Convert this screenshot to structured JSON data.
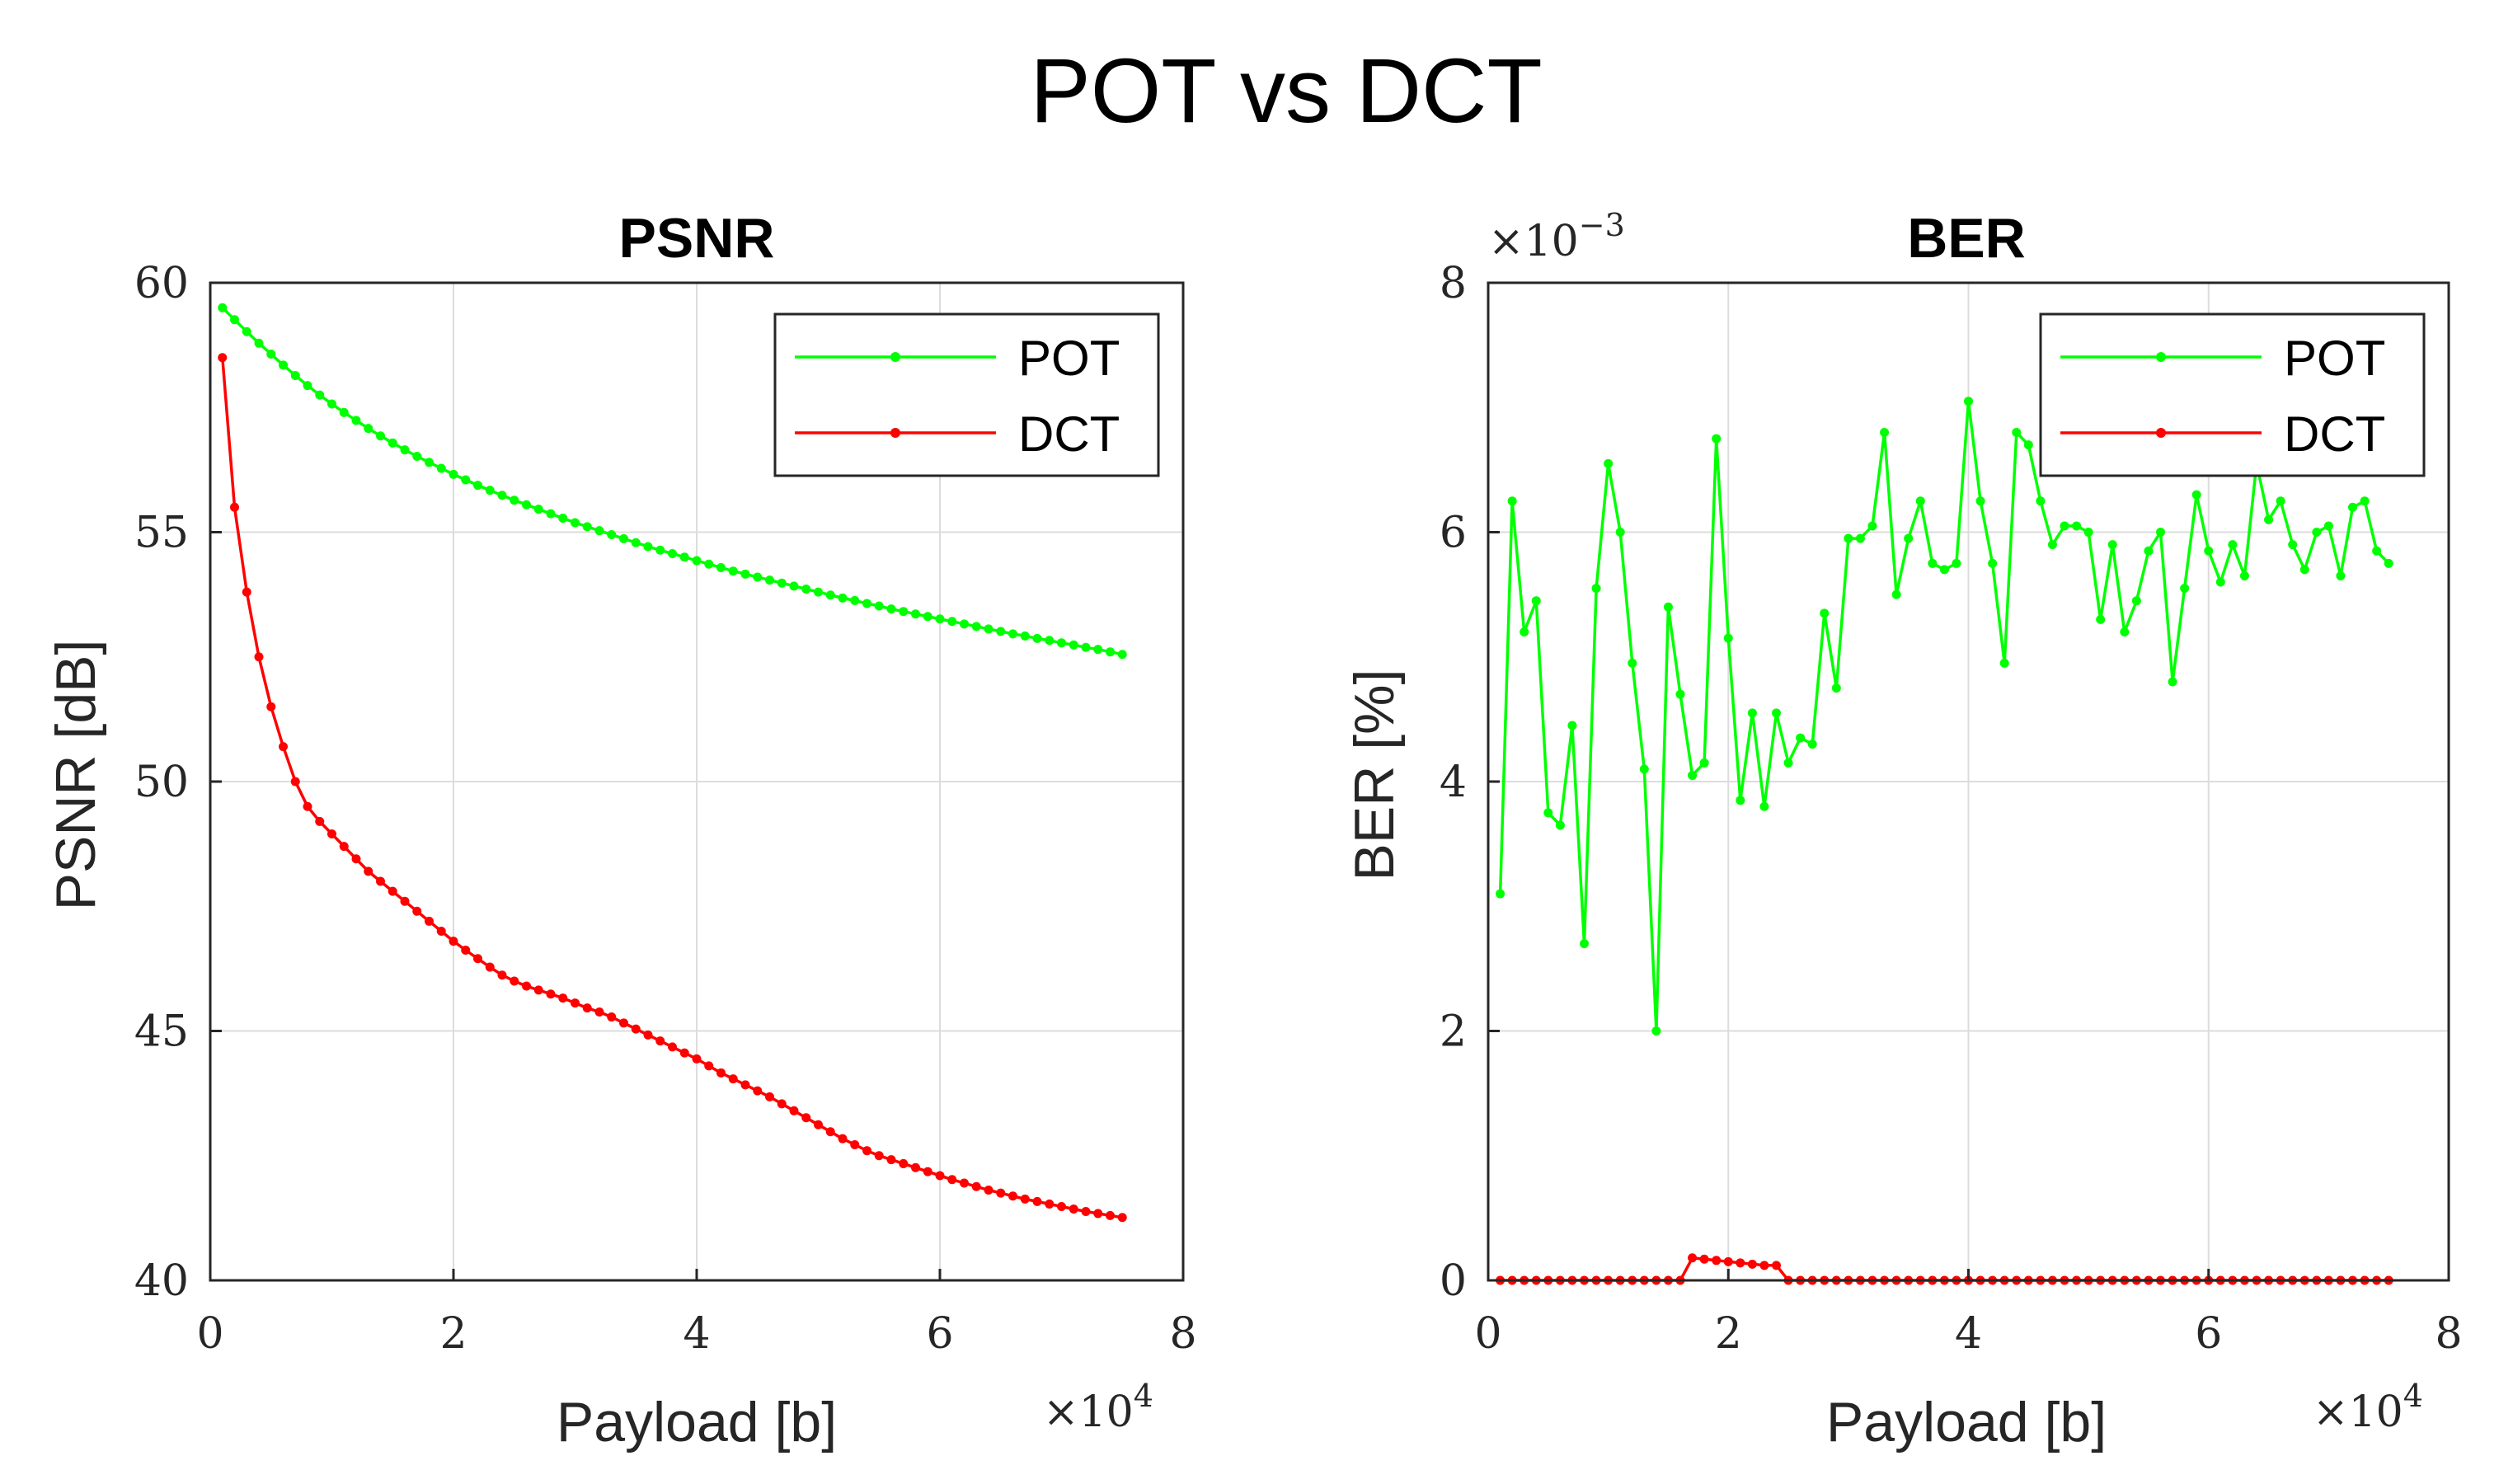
{
  "figure": {
    "title": "POT vs DCT"
  },
  "colors": {
    "pot": "#00ff00",
    "dct": "#ff0000"
  },
  "chart_data": [
    {
      "type": "line",
      "title": "PSNR",
      "xlabel": "Payload [b]",
      "ylabel": "PSNR [dB]",
      "x_multiplier_label": "×10",
      "x_multiplier_exp": "4",
      "xlim": [
        0,
        8
      ],
      "ylim": [
        40,
        60
      ],
      "xticks": [
        0,
        2,
        4,
        6,
        8
      ],
      "yticks": [
        40,
        45,
        50,
        55,
        60
      ],
      "grid": true,
      "legend_position": "top-right",
      "x": [
        0.1,
        0.2,
        0.3,
        0.4,
        0.5,
        0.6,
        0.7,
        0.8,
        0.9,
        1.0,
        1.1,
        1.2,
        1.3,
        1.4,
        1.5,
        1.6,
        1.7,
        1.8,
        1.9,
        2.0,
        2.1,
        2.2,
        2.3,
        2.4,
        2.5,
        2.6,
        2.7,
        2.8,
        2.9,
        3.0,
        3.1,
        3.2,
        3.3,
        3.4,
        3.5,
        3.6,
        3.7,
        3.8,
        3.9,
        4.0,
        4.1,
        4.2,
        4.3,
        4.4,
        4.5,
        4.6,
        4.7,
        4.8,
        4.9,
        5.0,
        5.1,
        5.2,
        5.3,
        5.4,
        5.5,
        5.6,
        5.7,
        5.8,
        5.9,
        6.0,
        6.1,
        6.2,
        6.3,
        6.4,
        6.5,
        6.6,
        6.7,
        6.8,
        6.9,
        7.0,
        7.1,
        7.2,
        7.3,
        7.4,
        7.5
      ],
      "series": [
        {
          "name": "POT",
          "values": [
            59.5,
            59.26,
            59.02,
            58.79,
            58.57,
            58.35,
            58.14,
            57.94,
            57.75,
            57.57,
            57.4,
            57.24,
            57.08,
            56.93,
            56.79,
            56.65,
            56.52,
            56.4,
            56.28,
            56.16,
            56.05,
            55.94,
            55.84,
            55.74,
            55.64,
            55.55,
            55.46,
            55.37,
            55.28,
            55.19,
            55.11,
            55.03,
            54.95,
            54.87,
            54.79,
            54.71,
            54.64,
            54.57,
            54.5,
            54.43,
            54.36,
            54.29,
            54.22,
            54.16,
            54.1,
            54.04,
            53.98,
            53.92,
            53.86,
            53.8,
            53.74,
            53.68,
            53.63,
            53.57,
            53.52,
            53.46,
            53.41,
            53.36,
            53.31,
            53.26,
            53.21,
            53.16,
            53.11,
            53.06,
            53.01,
            52.96,
            52.92,
            52.87,
            52.83,
            52.78,
            52.74,
            52.69,
            52.65,
            52.6,
            52.55
          ]
        },
        {
          "name": "DCT",
          "values": [
            58.5,
            55.5,
            53.8,
            52.5,
            51.5,
            50.7,
            50.0,
            49.5,
            49.2,
            48.95,
            48.7,
            48.45,
            48.2,
            48.0,
            47.8,
            47.6,
            47.4,
            47.2,
            47.0,
            46.8,
            46.62,
            46.45,
            46.28,
            46.12,
            46.0,
            45.9,
            45.82,
            45.74,
            45.66,
            45.56,
            45.46,
            45.38,
            45.28,
            45.16,
            45.04,
            44.92,
            44.8,
            44.68,
            44.56,
            44.44,
            44.3,
            44.16,
            44.04,
            43.92,
            43.8,
            43.68,
            43.54,
            43.4,
            43.26,
            43.12,
            42.98,
            42.84,
            42.72,
            42.6,
            42.5,
            42.42,
            42.34,
            42.26,
            42.18,
            42.1,
            42.02,
            41.95,
            41.88,
            41.81,
            41.75,
            41.69,
            41.63,
            41.58,
            41.53,
            41.48,
            41.43,
            41.38,
            41.34,
            41.3,
            41.26
          ]
        }
      ]
    },
    {
      "type": "line",
      "title": "BER",
      "xlabel": "Payload [b]",
      "ylabel": "BER [%]",
      "x_multiplier_label": "×10",
      "x_multiplier_exp": "4",
      "y_multiplier_label": "×10",
      "y_multiplier_exp": "−3",
      "xlim": [
        0,
        8
      ],
      "ylim": [
        0,
        8
      ],
      "xticks": [
        0,
        2,
        4,
        6,
        8
      ],
      "yticks": [
        0,
        2,
        4,
        6,
        8
      ],
      "grid": true,
      "legend_position": "top-right",
      "x": [
        0.1,
        0.2,
        0.3,
        0.4,
        0.5,
        0.6,
        0.7,
        0.8,
        0.9,
        1.0,
        1.1,
        1.2,
        1.3,
        1.4,
        1.5,
        1.6,
        1.7,
        1.8,
        1.9,
        2.0,
        2.1,
        2.2,
        2.3,
        2.4,
        2.5,
        2.6,
        2.7,
        2.8,
        2.9,
        3.0,
        3.1,
        3.2,
        3.3,
        3.4,
        3.5,
        3.6,
        3.7,
        3.8,
        3.9,
        4.0,
        4.1,
        4.2,
        4.3,
        4.4,
        4.5,
        4.6,
        4.7,
        4.8,
        4.9,
        5.0,
        5.1,
        5.2,
        5.3,
        5.4,
        5.5,
        5.6,
        5.7,
        5.8,
        5.9,
        6.0,
        6.1,
        6.2,
        6.3,
        6.4,
        6.5,
        6.6,
        6.7,
        6.8,
        6.9,
        7.0,
        7.1,
        7.2,
        7.3,
        7.4,
        7.5
      ],
      "series": [
        {
          "name": "POT",
          "values": [
            3.1,
            6.25,
            5.2,
            5.45,
            3.75,
            3.65,
            4.45,
            2.7,
            5.55,
            6.55,
            6.0,
            4.95,
            4.1,
            2.0,
            5.4,
            4.7,
            4.05,
            4.15,
            6.75,
            5.15,
            3.85,
            4.55,
            3.8,
            4.55,
            4.15,
            4.35,
            4.3,
            5.35,
            4.75,
            5.95,
            5.95,
            6.05,
            6.8,
            5.5,
            5.95,
            6.25,
            5.75,
            5.7,
            5.75,
            7.05,
            6.25,
            5.75,
            4.95,
            6.8,
            6.7,
            6.25,
            5.9,
            6.05,
            6.05,
            6.0,
            5.3,
            5.9,
            5.2,
            5.45,
            5.85,
            6.0,
            4.8,
            5.55,
            6.3,
            5.85,
            5.6,
            5.9,
            5.65,
            6.55,
            6.1,
            6.25,
            5.9,
            5.7,
            6.0,
            6.05,
            5.65,
            6.2,
            6.25,
            5.85,
            5.75
          ]
        },
        {
          "name": "DCT",
          "values": [
            0,
            0,
            0,
            0,
            0,
            0,
            0,
            0,
            0,
            0,
            0,
            0,
            0,
            0,
            0,
            0,
            0.18,
            0.17,
            0.16,
            0.15,
            0.14,
            0.13,
            0.12,
            0.12,
            0,
            0,
            0,
            0,
            0,
            0,
            0,
            0,
            0,
            0,
            0,
            0,
            0,
            0,
            0,
            0,
            0,
            0,
            0,
            0,
            0,
            0,
            0,
            0,
            0,
            0,
            0,
            0,
            0,
            0,
            0,
            0,
            0,
            0,
            0,
            0,
            0,
            0,
            0,
            0,
            0,
            0,
            0,
            0,
            0,
            0,
            0,
            0,
            0,
            0,
            0
          ]
        }
      ]
    }
  ]
}
